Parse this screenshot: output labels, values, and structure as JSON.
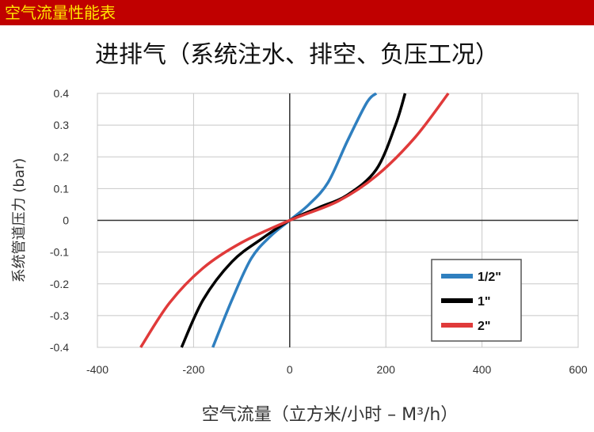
{
  "banner": {
    "text": "空气流量性能表"
  },
  "chart_data": {
    "type": "line",
    "title": "进排气（系统注水、排空、负压工况）",
    "xlabel": "空气流量（立方米/小时 – M³/h）",
    "ylabel": "系统管道压力 (bar)",
    "xlim": [
      -400,
      600
    ],
    "ylim": [
      -0.4,
      0.4
    ],
    "xticks": [
      -400,
      -200,
      0,
      200,
      400,
      600
    ],
    "yticks": [
      0.4,
      0.3,
      0.2,
      0.1,
      0,
      -0.1,
      -0.2,
      -0.3,
      -0.4
    ],
    "ytick_labels": [
      "0.4",
      "0.3",
      "0.2",
      "0.1",
      "0",
      "-0.1",
      "-0.2",
      "-0.3",
      "-0.4"
    ],
    "grid": true,
    "legend_position": "bottom-right",
    "series": [
      {
        "name": "1/2\"",
        "color": "#2f7fbf",
        "x": [
          -160,
          -120,
          -80,
          -40,
          0,
          40,
          80,
          120,
          160,
          180
        ],
        "y": [
          -0.4,
          -0.25,
          -0.12,
          -0.05,
          0,
          0.05,
          0.12,
          0.25,
          0.37,
          0.4
        ]
      },
      {
        "name": "1\"",
        "color": "#000000",
        "x": [
          -225,
          -180,
          -120,
          -60,
          0,
          60,
          120,
          180,
          220,
          240
        ],
        "y": [
          -0.4,
          -0.25,
          -0.13,
          -0.06,
          0,
          0.04,
          0.08,
          0.16,
          0.3,
          0.4
        ]
      },
      {
        "name": "2\"",
        "color": "#e03a3a",
        "x": [
          -310,
          -250,
          -180,
          -100,
          0,
          100,
          180,
          260,
          330
        ],
        "y": [
          -0.4,
          -0.26,
          -0.15,
          -0.07,
          0,
          0.06,
          0.14,
          0.26,
          0.4
        ]
      }
    ]
  }
}
